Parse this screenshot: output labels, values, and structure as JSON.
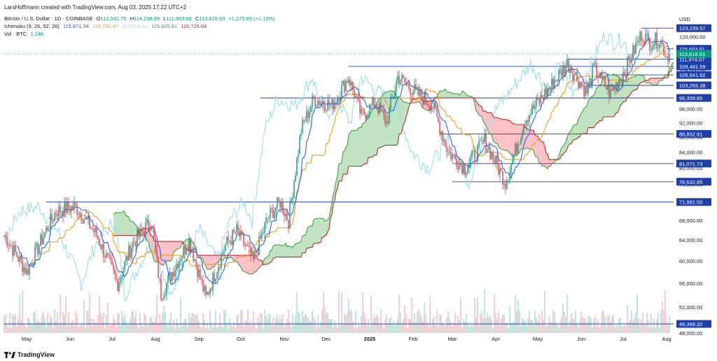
{
  "attribution": "LarsHoffmann created with TradingView.com, Aug 03, 2025 17:22 UTC+2",
  "legend": {
    "symbol": "Bitcoin / U.S. Dollar · 1D · COINBASE",
    "ohlc": {
      "O": "112,542.75",
      "H": "114,238.99",
      "L": "111,903.68",
      "C": "113,818.63"
    },
    "change": "+1,275.89 (+1.13%)",
    "ichimoku_label": "Ichimoku (9, 26, 52, 26)",
    "ichimoku_values": [
      "115,871.34",
      "115,780.47",
      "113,818.63",
      "115,825.91",
      "110,728.04"
    ],
    "vol_label": "Vol · BTC",
    "vol_value": "1.24K"
  },
  "footer": {
    "brand": "TradingView"
  },
  "colors": {
    "up": "#089981",
    "down": "#f23645",
    "tenkan": "#2962ff",
    "kijun": "#f59b1a",
    "chikou": "#9edcf0",
    "spanA": "#43a047",
    "spanB": "#c62828",
    "cloudUp": "rgba(76,175,80,0.35)",
    "cloudDown": "rgba(242,54,69,0.3)",
    "level": "#1e3fa8",
    "price": "#089981"
  },
  "chart_data": {
    "type": "candlestick",
    "ylabel": "USD",
    "scale": "log",
    "ylim": [
      48000,
      126000
    ],
    "yticks": [
      48000,
      52000,
      56000,
      60000,
      64000,
      68000,
      72000,
      76000,
      80000,
      84000,
      88000,
      92000,
      96000,
      100000,
      104000,
      108000,
      112000,
      116000,
      120000
    ],
    "ytick_labels": [
      "48,000.00",
      "52,000.00",
      "56,000.00",
      "60,000.00",
      "64,000.00",
      "68,000.00",
      "72,000.00",
      "76,000.00",
      "80,000.00",
      "84,000.00",
      "88,000.00",
      "92,000.00",
      "96,000.00",
      "100,000.00",
      "104,000.00",
      "108,000.00",
      "112,000.00",
      "116,000.00",
      "120,000.00"
    ],
    "x_start": "2024-04-15",
    "x_end": "2025-08-06",
    "xticks": [
      {
        "date": "2024-05-01",
        "label": "May"
      },
      {
        "date": "2024-06-01",
        "label": "Jun"
      },
      {
        "date": "2024-07-01",
        "label": "Jul"
      },
      {
        "date": "2024-08-01",
        "label": "Aug"
      },
      {
        "date": "2024-09-01",
        "label": "Sep"
      },
      {
        "date": "2024-10-01",
        "label": "Oct"
      },
      {
        "date": "2024-11-01",
        "label": "Nov"
      },
      {
        "date": "2024-12-01",
        "label": "Dec"
      },
      {
        "date": "2025-01-01",
        "label": "2025"
      },
      {
        "date": "2025-02-01",
        "label": "Feb"
      },
      {
        "date": "2025-03-01",
        "label": "Mar"
      },
      {
        "date": "2025-04-01",
        "label": "Apr"
      },
      {
        "date": "2025-05-01",
        "label": "May"
      },
      {
        "date": "2025-06-01",
        "label": "Jun"
      },
      {
        "date": "2025-07-01",
        "label": "Jul"
      },
      {
        "date": "2025-08-01",
        "label": "Aug"
      }
    ],
    "price_path": [
      [
        "2024-04-15",
        65000
      ],
      [
        "2024-05-01",
        58000
      ],
      [
        "2024-05-15",
        66000
      ],
      [
        "2024-05-22",
        70000
      ],
      [
        "2024-06-05",
        71000
      ],
      [
        "2024-06-20",
        65000
      ],
      [
        "2024-07-05",
        56000
      ],
      [
        "2024-07-15",
        63000
      ],
      [
        "2024-07-29",
        68000
      ],
      [
        "2024-08-05",
        54000
      ],
      [
        "2024-08-15",
        59000
      ],
      [
        "2024-08-25",
        64000
      ],
      [
        "2024-09-06",
        53500
      ],
      [
        "2024-09-20",
        63000
      ],
      [
        "2024-09-28",
        65800
      ],
      [
        "2024-10-10",
        60000
      ],
      [
        "2024-10-20",
        68500
      ],
      [
        "2024-10-29",
        72000
      ],
      [
        "2024-11-04",
        68000
      ],
      [
        "2024-11-13",
        90000
      ],
      [
        "2024-11-22",
        99000
      ],
      [
        "2024-12-05",
        97000
      ],
      [
        "2024-12-17",
        106000
      ],
      [
        "2024-12-26",
        94000
      ],
      [
        "2025-01-05",
        98000
      ],
      [
        "2025-01-13",
        92000
      ],
      [
        "2025-01-21",
        106000
      ],
      [
        "2025-01-31",
        102000
      ],
      [
        "2025-02-15",
        97000
      ],
      [
        "2025-02-26",
        84000
      ],
      [
        "2025-03-10",
        80000
      ],
      [
        "2025-03-24",
        87000
      ],
      [
        "2025-04-08",
        76500
      ],
      [
        "2025-04-22",
        93000
      ],
      [
        "2025-05-10",
        103000
      ],
      [
        "2025-05-22",
        110500
      ],
      [
        "2025-06-05",
        101000
      ],
      [
        "2025-06-10",
        109000
      ],
      [
        "2025-06-22",
        100500
      ],
      [
        "2025-07-03",
        109000
      ],
      [
        "2025-07-14",
        121000
      ],
      [
        "2025-07-20",
        118000
      ],
      [
        "2025-07-27",
        119000
      ],
      [
        "2025-08-01",
        113000
      ],
      [
        "2025-08-03",
        113818.63
      ]
    ],
    "last_close": 113818.63,
    "levels": [
      {
        "value": 123239.57,
        "label": "123,239.57",
        "from": "2025-07-14"
      },
      {
        "value": 115603.61,
        "label": "115,603.61",
        "from": "2025-08-01"
      },
      {
        "value": 111974.07,
        "label": "111,974.07",
        "from": "2025-05-22"
      },
      {
        "value": 109481.59,
        "label": "109,481.59",
        "from": "2024-12-17"
      },
      {
        "value": 106641.62,
        "label": "106,641.62",
        "from": "2025-06-20"
      },
      {
        "value": 103255.38,
        "label": "103,255.38",
        "from": "2025-06-05"
      },
      {
        "value": 99309.85,
        "label": "99,309.85",
        "from": "2024-10-15"
      },
      {
        "value": 88852.91,
        "label": "88,852.91",
        "from": "2025-02-20"
      },
      {
        "value": 81071.73,
        "label": "81,071.73",
        "from": "2025-03-01"
      },
      {
        "value": 76632.85,
        "label": "76,632.85",
        "from": "2025-03-01"
      },
      {
        "value": 71981.5,
        "label": "71,981.50",
        "from": "2024-05-15"
      },
      {
        "value": 49368.32,
        "label": "49,368.32",
        "from": "2024-04-15"
      }
    ],
    "price_tag_label": "113,818.63"
  }
}
